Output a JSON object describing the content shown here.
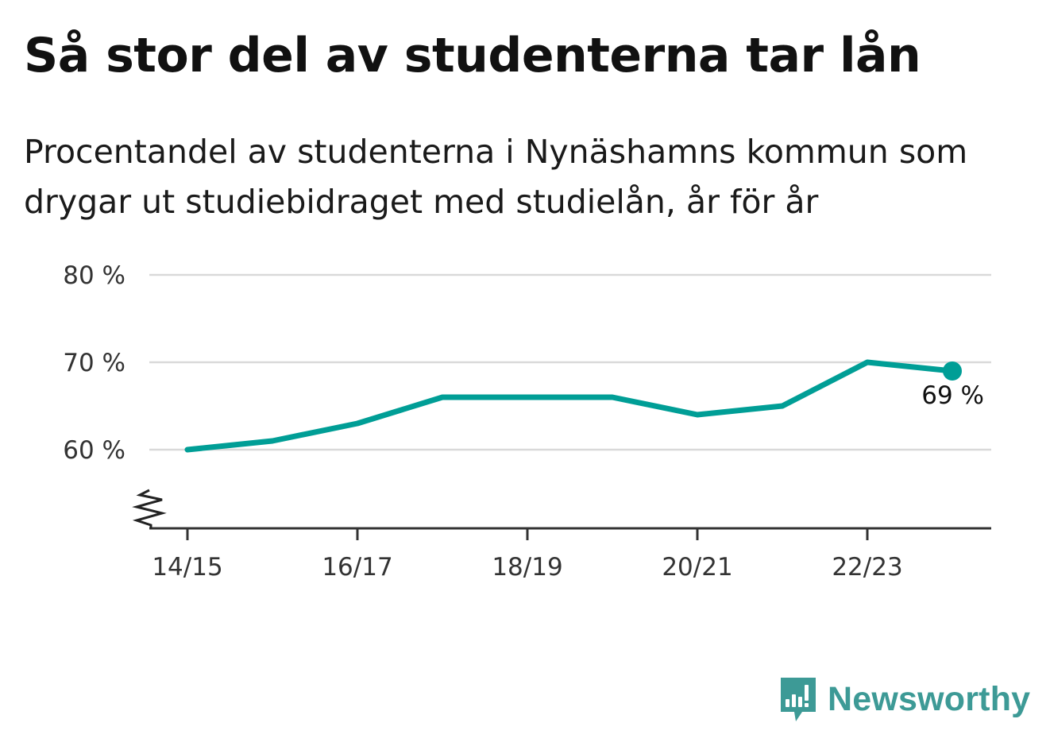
{
  "chart_data": {
    "type": "line",
    "title": "Så stor del av studenterna tar lån",
    "subtitle": "Procentandel av studenterna i Nynäshamns kommun som drygar ut studiebidraget med studielån, år för år",
    "x": [
      "14/15",
      "15/16",
      "16/17",
      "17/18",
      "18/19",
      "19/20",
      "20/21",
      "21/22",
      "22/23",
      "23/24"
    ],
    "x_tick_labels": [
      "14/15",
      "16/17",
      "18/19",
      "20/21",
      "22/23"
    ],
    "series": [
      {
        "values": [
          60,
          61,
          63,
          66,
          66,
          66,
          64,
          65,
          70,
          69
        ],
        "color": "#009e96"
      }
    ],
    "y_ticks": [
      60,
      70,
      80
    ],
    "y_tick_labels": [
      "60 %",
      "70 %",
      "80 %"
    ],
    "ylim": [
      51,
      80
    ],
    "y_axis_break": true,
    "grid": true,
    "last_value_label": "69 %"
  },
  "brand": {
    "name": "Newsworthy",
    "color": "#3d9a96"
  }
}
